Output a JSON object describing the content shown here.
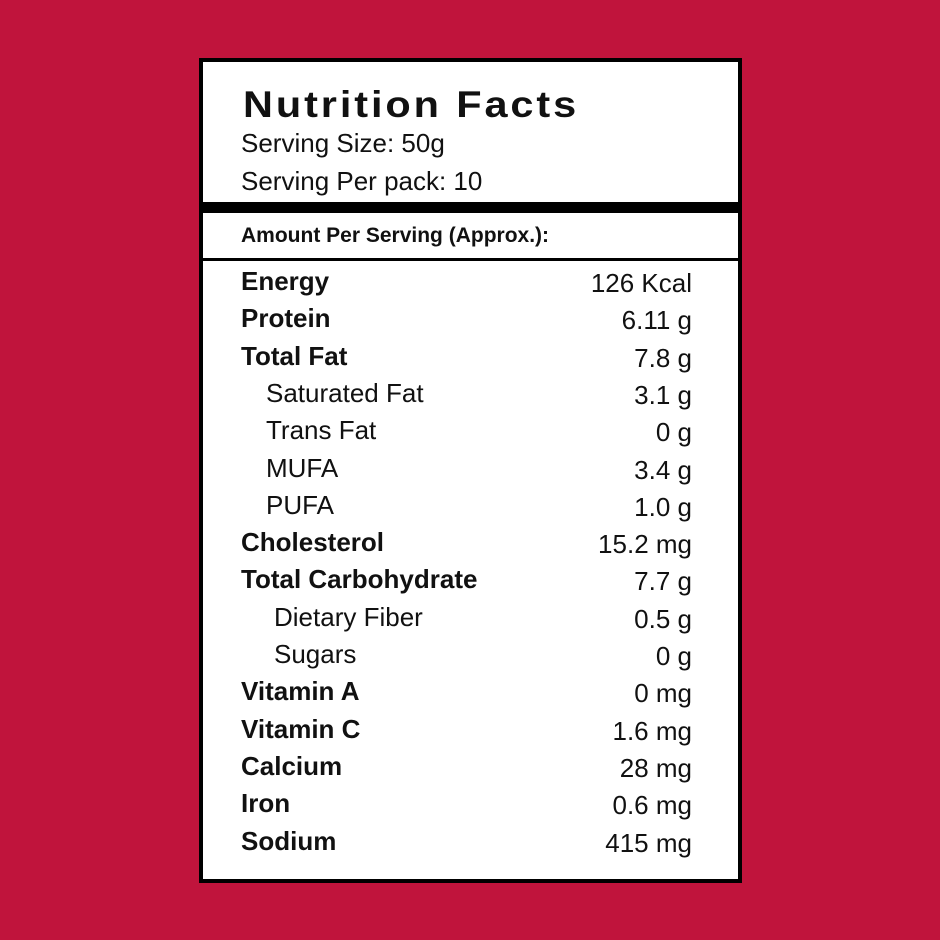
{
  "header": {
    "title": "Nutrition Facts",
    "serving_size": "Serving Size: 50g",
    "servings_per_pack": "Serving Per pack: 10"
  },
  "subheader": "Amount Per Serving (Approx.):",
  "table": {
    "rows": [
      [
        "Energy",
        "126 Kcal"
      ],
      [
        "Protein",
        "6.11 g"
      ],
      [
        "Total Fat",
        "7.8 g"
      ],
      [
        "Saturated Fat",
        "3.1 g"
      ],
      [
        "Trans Fat",
        "0 g"
      ],
      [
        "MUFA",
        "3.4 g"
      ],
      [
        "PUFA",
        "1.0 g"
      ],
      [
        "Cholesterol",
        "15.2 mg"
      ],
      [
        "Total Carbohydrate",
        "7.7 g"
      ],
      [
        "Dietary Fiber",
        "0.5 g"
      ],
      [
        "Sugars",
        "0 g"
      ],
      [
        "Vitamin A",
        "0 mg"
      ],
      [
        "Vitamin C",
        "1.6 mg"
      ],
      [
        "Calcium",
        "28 mg"
      ],
      [
        "Iron",
        "0.6 mg"
      ],
      [
        "Sodium",
        "415 mg"
      ]
    ]
  }
}
